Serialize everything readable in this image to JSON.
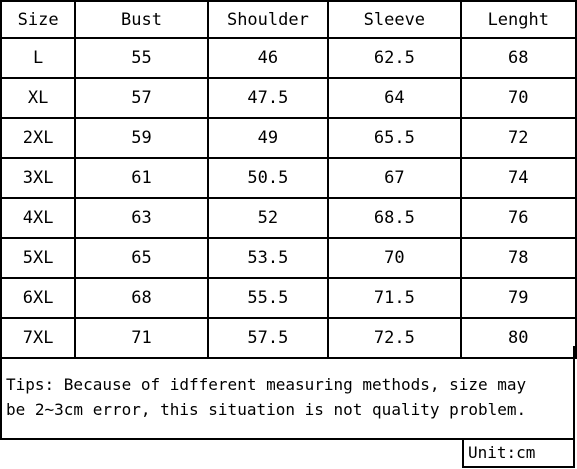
{
  "table": {
    "headers": [
      "Size",
      "Bust",
      "Shoulder",
      "Sleeve",
      "Lenght"
    ],
    "rows": [
      [
        "L",
        "55",
        "46",
        "62.5",
        "68"
      ],
      [
        "XL",
        "57",
        "47.5",
        "64",
        "70"
      ],
      [
        "2XL",
        "59",
        "49",
        "65.5",
        "72"
      ],
      [
        "3XL",
        "61",
        "50.5",
        "67",
        "74"
      ],
      [
        "4XL",
        "63",
        "52",
        "68.5",
        "76"
      ],
      [
        "5XL",
        "65",
        "53.5",
        "70",
        "78"
      ],
      [
        "6XL",
        "68",
        "55.5",
        "71.5",
        "79"
      ],
      [
        "7XL",
        "71",
        "57.5",
        "72.5",
        "80"
      ]
    ]
  },
  "tips": {
    "line1": "Tips: Because of idfferent measuring methods, size may",
    "line2": "be 2~3cm error, this situation is not quality problem."
  },
  "unit": {
    "label": "Unit:cm"
  }
}
